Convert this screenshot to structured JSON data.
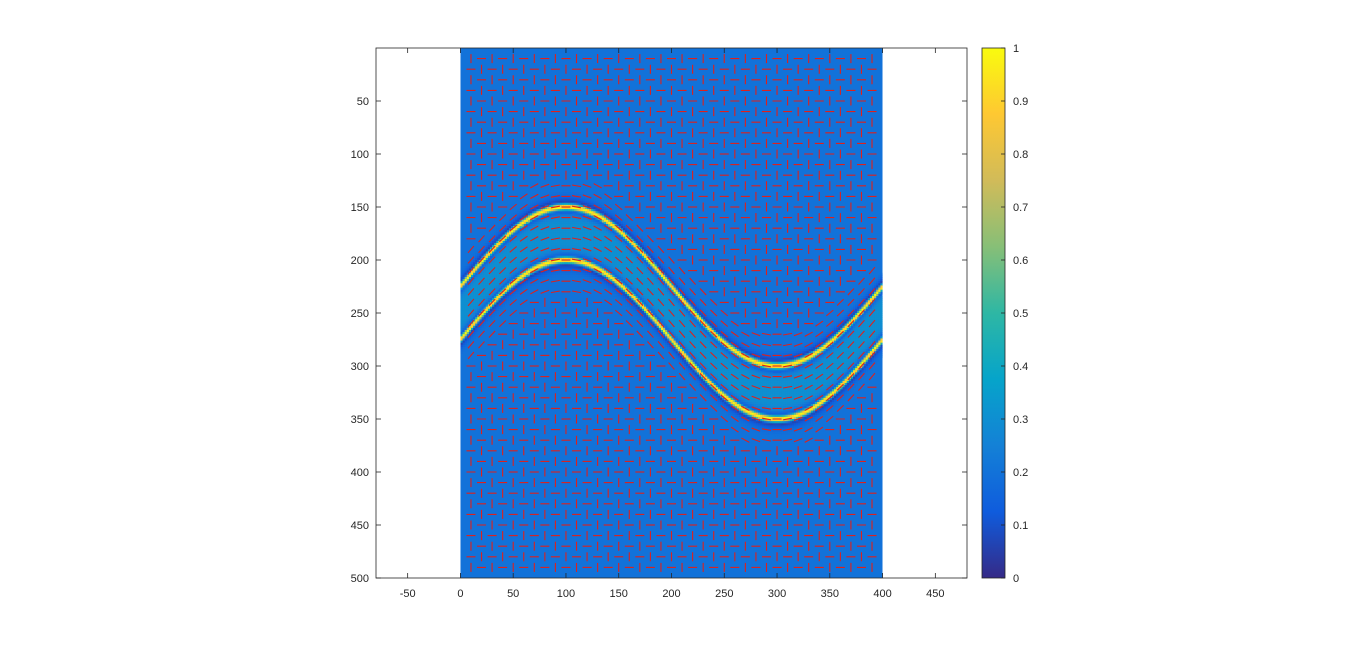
{
  "chart_data": {
    "type": "heatmap",
    "title": "",
    "xlabel": "",
    "ylabel": "",
    "xlim": [
      -80,
      480
    ],
    "ylim": [
      500,
      0
    ],
    "image_extent": {
      "x": [
        0,
        400
      ],
      "y": [
        0,
        500
      ]
    },
    "x_ticks": [
      -50,
      0,
      50,
      100,
      150,
      200,
      250,
      300,
      350,
      400,
      450
    ],
    "y_ticks": [
      50,
      100,
      150,
      200,
      250,
      300,
      350,
      400,
      450,
      500
    ],
    "y_direction": "reverse",
    "grid": false,
    "colormap": "parula",
    "colormap_stops": [
      "#352a87",
      "#0f5cdd",
      "#1481d6",
      "#06a4ca",
      "#2eb7a4",
      "#87bf77",
      "#d1bb59",
      "#fec832",
      "#f9fb0e"
    ],
    "background_value": 0.2,
    "band_fill_value": 0.3,
    "curve": {
      "function": "sine",
      "center_y": 250,
      "amplitude": 75,
      "period": 400,
      "upper_edge_offset": -25,
      "lower_edge_offset": 25,
      "edge_peak_value": 1,
      "edge_trough_value": 0
    },
    "quiver": {
      "color": "#e0201b",
      "spacing": 10,
      "markers": "circles where no orientation, short line segments elsewhere"
    },
    "colorbar": {
      "location": "right",
      "ticks": [
        0,
        0.1,
        0.2,
        0.3,
        0.4,
        0.5,
        0.6,
        0.7,
        0.8,
        0.9,
        1
      ],
      "range": [
        0,
        1
      ]
    }
  }
}
